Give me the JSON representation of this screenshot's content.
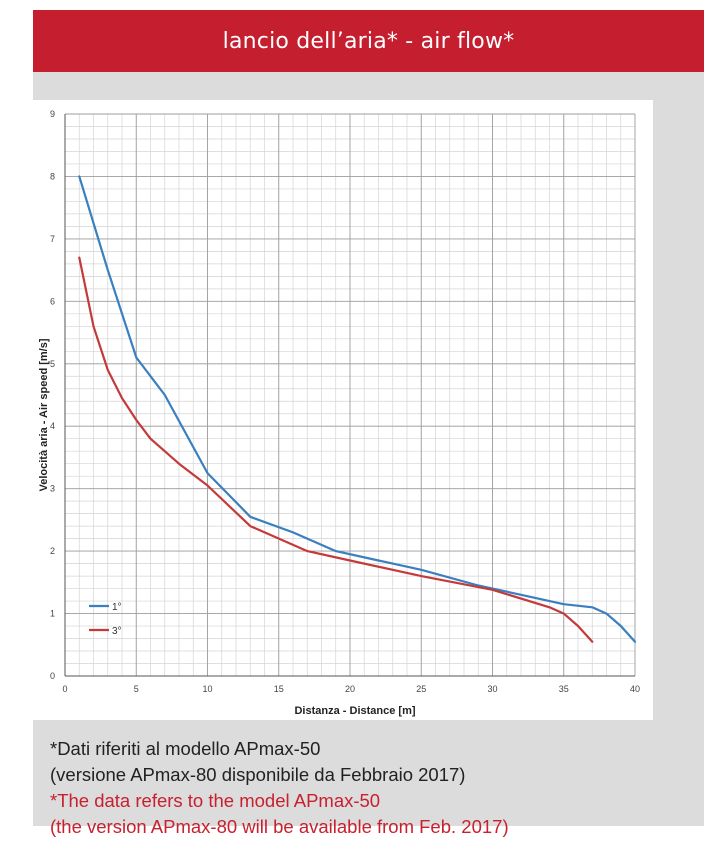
{
  "header": {
    "title": "lancio dell’aria* - air flow*"
  },
  "chart_data": {
    "type": "line",
    "title": "",
    "xlabel": "Distanza - Distance [m]",
    "ylabel": "Velocità aria - Air speed [m/s]",
    "xlim": [
      0,
      40
    ],
    "ylim": [
      0,
      9
    ],
    "xticks": [
      0,
      5,
      10,
      15,
      20,
      25,
      30,
      35,
      40
    ],
    "yticks": [
      0,
      1,
      2,
      3,
      4,
      5,
      6,
      7,
      8,
      9
    ],
    "grid": true,
    "legend_position": "bottom-left",
    "series": [
      {
        "name": "1°",
        "color": "#3a7fbf",
        "x": [
          1,
          3,
          5,
          7,
          10,
          13,
          16,
          19,
          22,
          25,
          29,
          32,
          35,
          37,
          38,
          39,
          40
        ],
        "y": [
          8.0,
          6.5,
          5.1,
          4.5,
          3.25,
          2.55,
          2.3,
          2.0,
          1.85,
          1.7,
          1.45,
          1.3,
          1.15,
          1.1,
          1.0,
          0.8,
          0.55
        ]
      },
      {
        "name": "3°",
        "color": "#c43a3a",
        "x": [
          1,
          2,
          3,
          4,
          5,
          6,
          8,
          10,
          13,
          17,
          20,
          25,
          30,
          34,
          35,
          36,
          37
        ],
        "y": [
          6.7,
          5.6,
          4.9,
          4.45,
          4.1,
          3.8,
          3.4,
          3.05,
          2.4,
          2.0,
          1.85,
          1.6,
          1.38,
          1.1,
          1.0,
          0.8,
          0.55
        ]
      }
    ]
  },
  "notes": {
    "it_line1": "*Dati riferiti al modello APmax-50",
    "it_line2": "(versione APmax-80 disponibile da Febbraio 2017)",
    "en_line1": "*The data refers to the model APmax-50",
    "en_line2": "(the version APmax-80 will be available from Feb. 2017)"
  }
}
